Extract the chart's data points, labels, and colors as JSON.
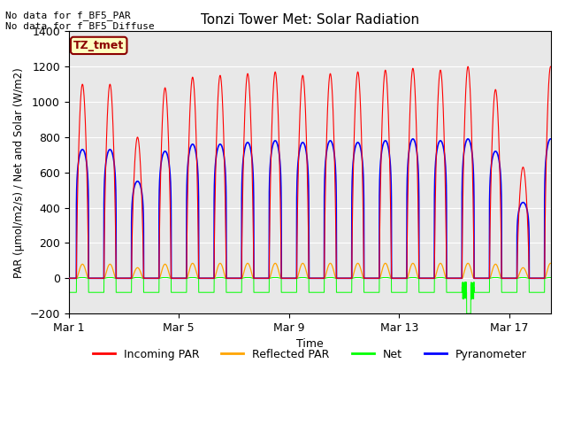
{
  "title": "Tonzi Tower Met: Solar Radiation",
  "xlabel": "Time",
  "ylabel": "PAR (μmol/m2/s) / Net and Solar (W/m2)",
  "ylim": [
    -200,
    1400
  ],
  "yticks": [
    -200,
    0,
    200,
    400,
    600,
    800,
    1000,
    1200,
    1400
  ],
  "xlim_days": [
    0,
    17.5
  ],
  "xtick_positions": [
    0,
    4,
    8,
    12,
    16
  ],
  "xtick_labels": [
    "Mar 1",
    "Mar 5",
    "Mar 9",
    "Mar 13",
    "Mar 17"
  ],
  "annotation_text": "No data for f_BF5_PAR\nNo data for f_BF5_Diffuse",
  "box_label": "TZ_tmet",
  "box_color": "#FFFFC0",
  "box_border_color": "#8B0000",
  "box_text_color": "#8B0000",
  "background_color": "#E8E8E8",
  "legend_entries": [
    "Incoming PAR",
    "Reflected PAR",
    "Net",
    "Pyranometer"
  ],
  "legend_colors": [
    "red",
    "orange",
    "lime",
    "blue"
  ],
  "line_colors": {
    "incoming": "red",
    "reflected": "orange",
    "net": "#00FF00",
    "pyranometer": "blue"
  },
  "n_days": 18,
  "points_per_day": 480,
  "incoming_peaks": [
    1100,
    1100,
    800,
    1080,
    1140,
    1150,
    1160,
    1170,
    1150,
    1160,
    1170,
    1180,
    1190,
    1180,
    1200,
    1070,
    630,
    1200
  ],
  "pyranometer_peaks": [
    730,
    730,
    550,
    720,
    760,
    760,
    770,
    780,
    770,
    780,
    770,
    780,
    790,
    780,
    790,
    720,
    430,
    790
  ],
  "reflected_peaks": [
    80,
    80,
    60,
    80,
    85,
    85,
    85,
    85,
    85,
    85,
    85,
    85,
    85,
    85,
    85,
    80,
    60,
    85
  ],
  "net_night": -80,
  "net_day_peak": 5,
  "net_special_day": 14,
  "net_special_value": -200
}
